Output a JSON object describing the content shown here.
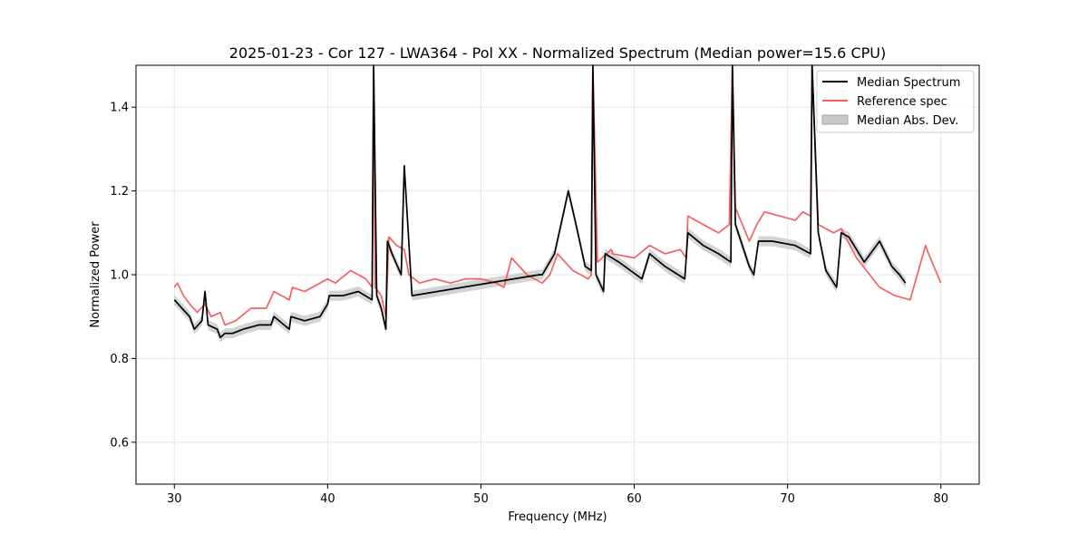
{
  "chart_data": {
    "type": "line",
    "title": "2025-01-23 - Cor 127 - LWA364 - Pol XX - Normalized Spectrum (Median power=15.6 CPU)",
    "xlabel": "Frequency (MHz)",
    "ylabel": "Normalized Power",
    "xlim": [
      27.5,
      82.5
    ],
    "ylim": [
      0.5,
      1.5
    ],
    "xticks": [
      30,
      40,
      50,
      60,
      70,
      80
    ],
    "yticks": [
      0.6,
      0.8,
      1.0,
      1.2,
      1.4
    ],
    "xtick_labels": [
      "30",
      "40",
      "50",
      "60",
      "70",
      "80"
    ],
    "ytick_labels": [
      "0.6",
      "0.8",
      "1.0",
      "1.2",
      "1.4"
    ],
    "grid": true,
    "legend_position": "top-right",
    "legend": [
      {
        "label": "Median Spectrum",
        "color": "#000000",
        "kind": "line"
      },
      {
        "label": "Reference spec",
        "color": "#f56161",
        "kind": "line"
      },
      {
        "label": "Median Abs. Dev.",
        "color": "#c8c8c8",
        "kind": "patch"
      }
    ],
    "series": [
      {
        "name": "Median Spectrum",
        "color": "#000000",
        "x": [
          30.0,
          30.5,
          31.0,
          31.3,
          31.8,
          32.0,
          32.2,
          32.8,
          33.0,
          33.3,
          33.8,
          34.5,
          35.5,
          36.3,
          36.5,
          37.5,
          37.6,
          38.5,
          39.5,
          40.0,
          40.1,
          41.0,
          42.0,
          42.9,
          43.0,
          43.2,
          43.5,
          43.8,
          43.9,
          44.2,
          44.8,
          45.0,
          45.5,
          53.8,
          54.0,
          54.8,
          55.4,
          55.7,
          56.2,
          56.8,
          57.2,
          57.3,
          57.5,
          58.0,
          58.1,
          59.0,
          60.5,
          61.0,
          62.0,
          63.3,
          63.5,
          64.5,
          65.5,
          66.3,
          66.4,
          66.6,
          67.5,
          67.8,
          68.1,
          69.0,
          70.5,
          71.5,
          71.6,
          72.0,
          72.5,
          73.2,
          73.5,
          74.0,
          75.0,
          76.0,
          76.8,
          77.3,
          77.7
        ],
        "y": [
          0.94,
          0.92,
          0.9,
          0.87,
          0.89,
          0.96,
          0.88,
          0.87,
          0.85,
          0.86,
          0.86,
          0.87,
          0.88,
          0.88,
          0.9,
          0.87,
          0.9,
          0.89,
          0.9,
          0.93,
          0.95,
          0.95,
          0.96,
          0.94,
          1.5,
          0.95,
          0.92,
          0.87,
          1.08,
          1.05,
          1.0,
          1.26,
          0.95,
          1.0,
          1.0,
          1.05,
          1.15,
          1.2,
          1.12,
          1.02,
          1.01,
          1.5,
          1.0,
          0.96,
          1.05,
          1.03,
          0.99,
          1.05,
          1.02,
          0.99,
          1.1,
          1.07,
          1.05,
          1.03,
          1.5,
          1.12,
          1.02,
          1.0,
          1.08,
          1.08,
          1.07,
          1.05,
          1.5,
          1.1,
          1.01,
          0.97,
          1.1,
          1.09,
          1.03,
          1.08,
          1.02,
          1.0,
          0.98
        ]
      },
      {
        "name": "Reference spec",
        "color": "#f56161",
        "x": [
          30.0,
          30.2,
          30.6,
          31.0,
          31.5,
          32.0,
          32.4,
          33.0,
          33.3,
          34.0,
          35.0,
          36.0,
          36.5,
          37.5,
          37.7,
          38.5,
          39.0,
          40.0,
          40.5,
          41.5,
          42.5,
          42.9,
          43.0,
          43.1,
          43.5,
          43.8,
          44.0,
          44.5,
          45.0,
          45.3,
          46.0,
          47.0,
          48.0,
          49.0,
          50.0,
          51.0,
          51.5,
          52.0,
          53.0,
          54.0,
          54.5,
          55.0,
          56.0,
          57.0,
          57.2,
          57.3,
          57.6,
          58.5,
          58.6,
          60.0,
          61.0,
          62.0,
          63.0,
          63.4,
          63.5,
          64.5,
          65.5,
          66.2,
          66.4,
          66.6,
          67.5,
          68.0,
          68.5,
          69.5,
          70.5,
          71.0,
          71.5,
          71.6,
          72.0,
          73.0,
          73.5,
          74.5,
          76.0,
          77.0,
          78.0,
          79.0,
          79.2,
          80.0
        ],
        "y": [
          0.97,
          0.98,
          0.95,
          0.93,
          0.91,
          0.93,
          0.9,
          0.91,
          0.88,
          0.89,
          0.92,
          0.92,
          0.96,
          0.94,
          0.97,
          0.96,
          0.97,
          0.99,
          0.98,
          1.01,
          0.99,
          0.97,
          1.5,
          0.97,
          0.95,
          0.9,
          1.09,
          1.07,
          1.06,
          1.0,
          0.98,
          0.99,
          0.98,
          0.99,
          0.99,
          0.98,
          0.97,
          1.04,
          1.0,
          0.98,
          1.0,
          1.05,
          1.01,
          0.99,
          1.0,
          1.5,
          1.03,
          1.06,
          1.05,
          1.04,
          1.07,
          1.05,
          1.06,
          1.04,
          1.14,
          1.12,
          1.1,
          1.12,
          1.5,
          1.16,
          1.08,
          1.12,
          1.15,
          1.14,
          1.13,
          1.15,
          1.14,
          1.5,
          1.12,
          1.1,
          1.11,
          1.04,
          0.97,
          0.95,
          0.94,
          1.07,
          1.05,
          0.98
        ]
      }
    ]
  }
}
